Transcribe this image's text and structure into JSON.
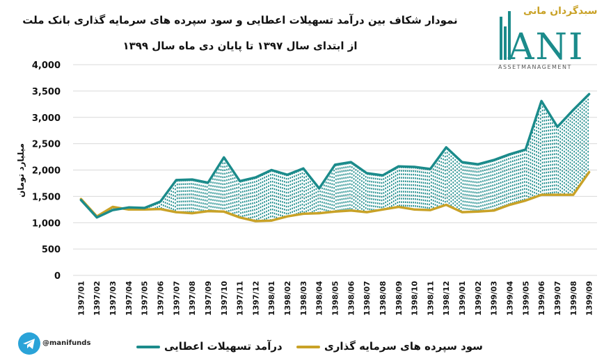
{
  "header": {
    "title_line1": "نمودار شکاف بین درآمد تسهیلات اعطایی و سود سپرده های سرمایه گذاری بانک ملت",
    "title_line2": "از ابتدای سال ۱۳۹۷ تا پایان دی ماه سال ۱۳۹۹"
  },
  "logo": {
    "persian": "سبدگردان مانی",
    "brand": "ANI",
    "subtitle": "ASSETMANAGEMENT"
  },
  "social": {
    "handle": "@manifunds",
    "icon": "telegram-icon"
  },
  "colors": {
    "income": "#1b8b8b",
    "deposit": "#c9a227",
    "gap": "#1b8b8b"
  },
  "chart_data": {
    "type": "line",
    "title": "نمودار شکاف بین درآمد تسهیلات اعطایی و سود سپرده های سرمایه گذاری بانک ملت",
    "subtitle": "از ابتدای سال ۱۳۹۷ تا پایان دی ماه سال ۱۳۹۹",
    "xlabel": "",
    "ylabel": "میلیارد تومان",
    "ylim": [
      0,
      4000
    ],
    "yticks": [
      "4,000",
      "3,500",
      "3,000",
      "2,500",
      "2,000",
      "1,500",
      "1,000",
      "500",
      "0"
    ],
    "ytick_values": [
      4000,
      3500,
      3000,
      2500,
      2000,
      1500,
      1000,
      500,
      0
    ],
    "grid": true,
    "legend_position": "bottom",
    "categories": [
      "1397/01",
      "1397/02",
      "1397/03",
      "1397/04",
      "1397/05",
      "1397/06",
      "1397/07",
      "1397/08",
      "1397/09",
      "1397/10",
      "1397/11",
      "1397/12",
      "1398/01",
      "1398/02",
      "1398/03",
      "1398/04",
      "1398/05",
      "1398/06",
      "1398/07",
      "1398/08",
      "1398/09",
      "1398/10",
      "1398/11",
      "1398/12",
      "1399/01",
      "1399/02",
      "1399/03",
      "1399/04",
      "1399/05",
      "1399/06",
      "1399/07",
      "1399/08",
      "1399/09"
    ],
    "series": [
      {
        "name": "درآمد تسهیلات اعطایی",
        "color": "#1b8b8b",
        "values": [
          1430,
          1100,
          1240,
          1290,
          1280,
          1400,
          1810,
          1820,
          1760,
          2240,
          1790,
          1860,
          2000,
          1910,
          2030,
          1650,
          2100,
          2150,
          1940,
          1900,
          2070,
          2060,
          2020,
          2430,
          2150,
          2110,
          2190,
          2300,
          2390,
          3310,
          2820,
          3140,
          3440
        ]
      },
      {
        "name": "سود سپرده های سرمایه گذاری",
        "color": "#c9a227",
        "values": [
          1450,
          1120,
          1300,
          1250,
          1250,
          1260,
          1200,
          1180,
          1220,
          1210,
          1100,
          1030,
          1040,
          1120,
          1170,
          1180,
          1210,
          1230,
          1200,
          1250,
          1300,
          1250,
          1240,
          1340,
          1200,
          1210,
          1230,
          1340,
          1420,
          1530,
          1530,
          1530,
          1960
        ]
      }
    ]
  }
}
